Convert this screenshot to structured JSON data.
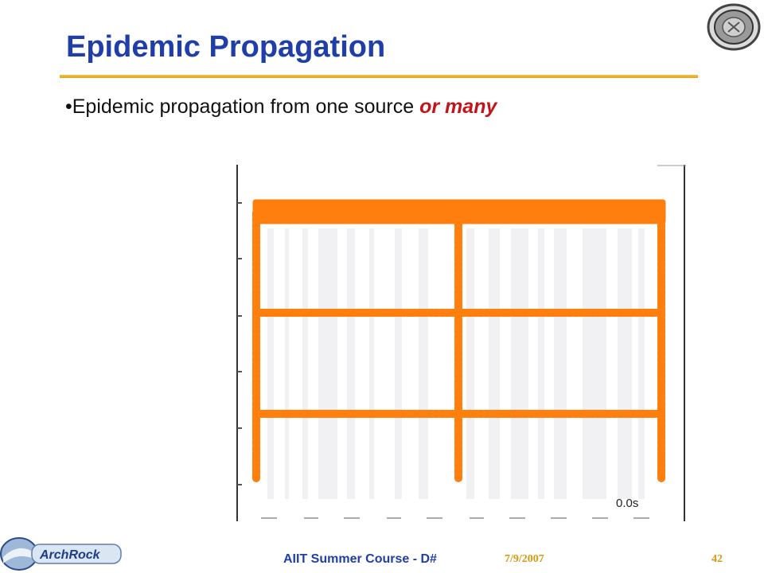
{
  "slide": {
    "title": "Epidemic Propagation",
    "bullet_prefix": "•Epidemic propagation from one source ",
    "bullet_emphasis": "or many"
  },
  "figure": {
    "timestamp": "0.0s"
  },
  "footer": {
    "logo_text": "ArchRock",
    "course": "AIIT Summer Course - D#",
    "date": "7/9/2007",
    "page": "42"
  },
  "colors": {
    "title": "#1f3ea8",
    "rule": "#e0a21a",
    "emphasis": "#c0161b",
    "nodes": "#ff7f0e",
    "footer_meta": "#d69a12"
  },
  "icons": {
    "seal": "university-seal-icon",
    "logo": "archrock-logo-icon"
  }
}
